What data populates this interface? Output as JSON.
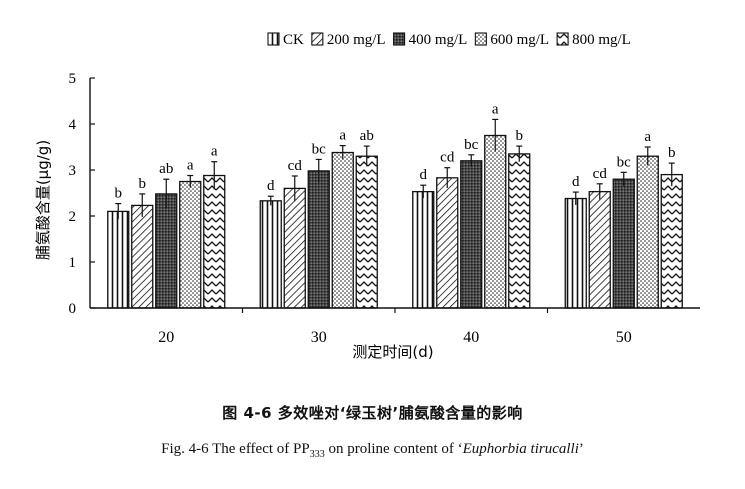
{
  "chart_data": {
    "type": "bar",
    "xlabel": "测定时间(d)",
    "ylabel": "脯氨酸含量(μg/g)",
    "ylim": [
      0,
      5
    ],
    "yticks": [
      "0",
      "1",
      "2",
      "3",
      "4",
      "5"
    ],
    "categories": [
      "20",
      "30",
      "40",
      "50"
    ],
    "legend_position": "top-right",
    "series": [
      {
        "name": "CK",
        "pattern": "vertical-lines",
        "values": [
          2.1,
          2.33,
          2.53,
          2.38
        ],
        "errors": [
          0.17,
          0.1,
          0.14,
          0.14
        ],
        "labels": [
          "b",
          "d",
          "d",
          "d"
        ]
      },
      {
        "name": "200 mg/L",
        "pattern": "diagonal-lines",
        "values": [
          2.23,
          2.6,
          2.83,
          2.53
        ],
        "errors": [
          0.25,
          0.27,
          0.22,
          0.17
        ],
        "labels": [
          "b",
          "cd",
          "cd",
          "cd"
        ]
      },
      {
        "name": "400 mg/L",
        "pattern": "dense-grid",
        "values": [
          2.48,
          2.98,
          3.2,
          2.8
        ],
        "errors": [
          0.32,
          0.25,
          0.13,
          0.15
        ],
        "labels": [
          "ab",
          "bc",
          "bc",
          "bc"
        ]
      },
      {
        "name": "600 mg/L",
        "pattern": "dots",
        "values": [
          2.75,
          3.38,
          3.75,
          3.3
        ],
        "errors": [
          0.13,
          0.15,
          0.35,
          0.2
        ],
        "labels": [
          "a",
          "a",
          "a",
          "a"
        ]
      },
      {
        "name": "800 mg/L",
        "pattern": "zigzag",
        "values": [
          2.88,
          3.3,
          3.35,
          2.9
        ],
        "errors": [
          0.3,
          0.22,
          0.17,
          0.25
        ],
        "labels": [
          "a",
          "ab",
          "b",
          "b"
        ]
      }
    ]
  },
  "caption": {
    "chinese": "图 4-6  多效唑对‘绿玉树’脯氨酸含量的影响",
    "english_prefix": "Fig. 4-6 The effect of PP",
    "english_sub": "333",
    "english_mid": " on proline content of ‘",
    "english_species": "Euphorbia tirucalli",
    "english_suffix": "’"
  }
}
